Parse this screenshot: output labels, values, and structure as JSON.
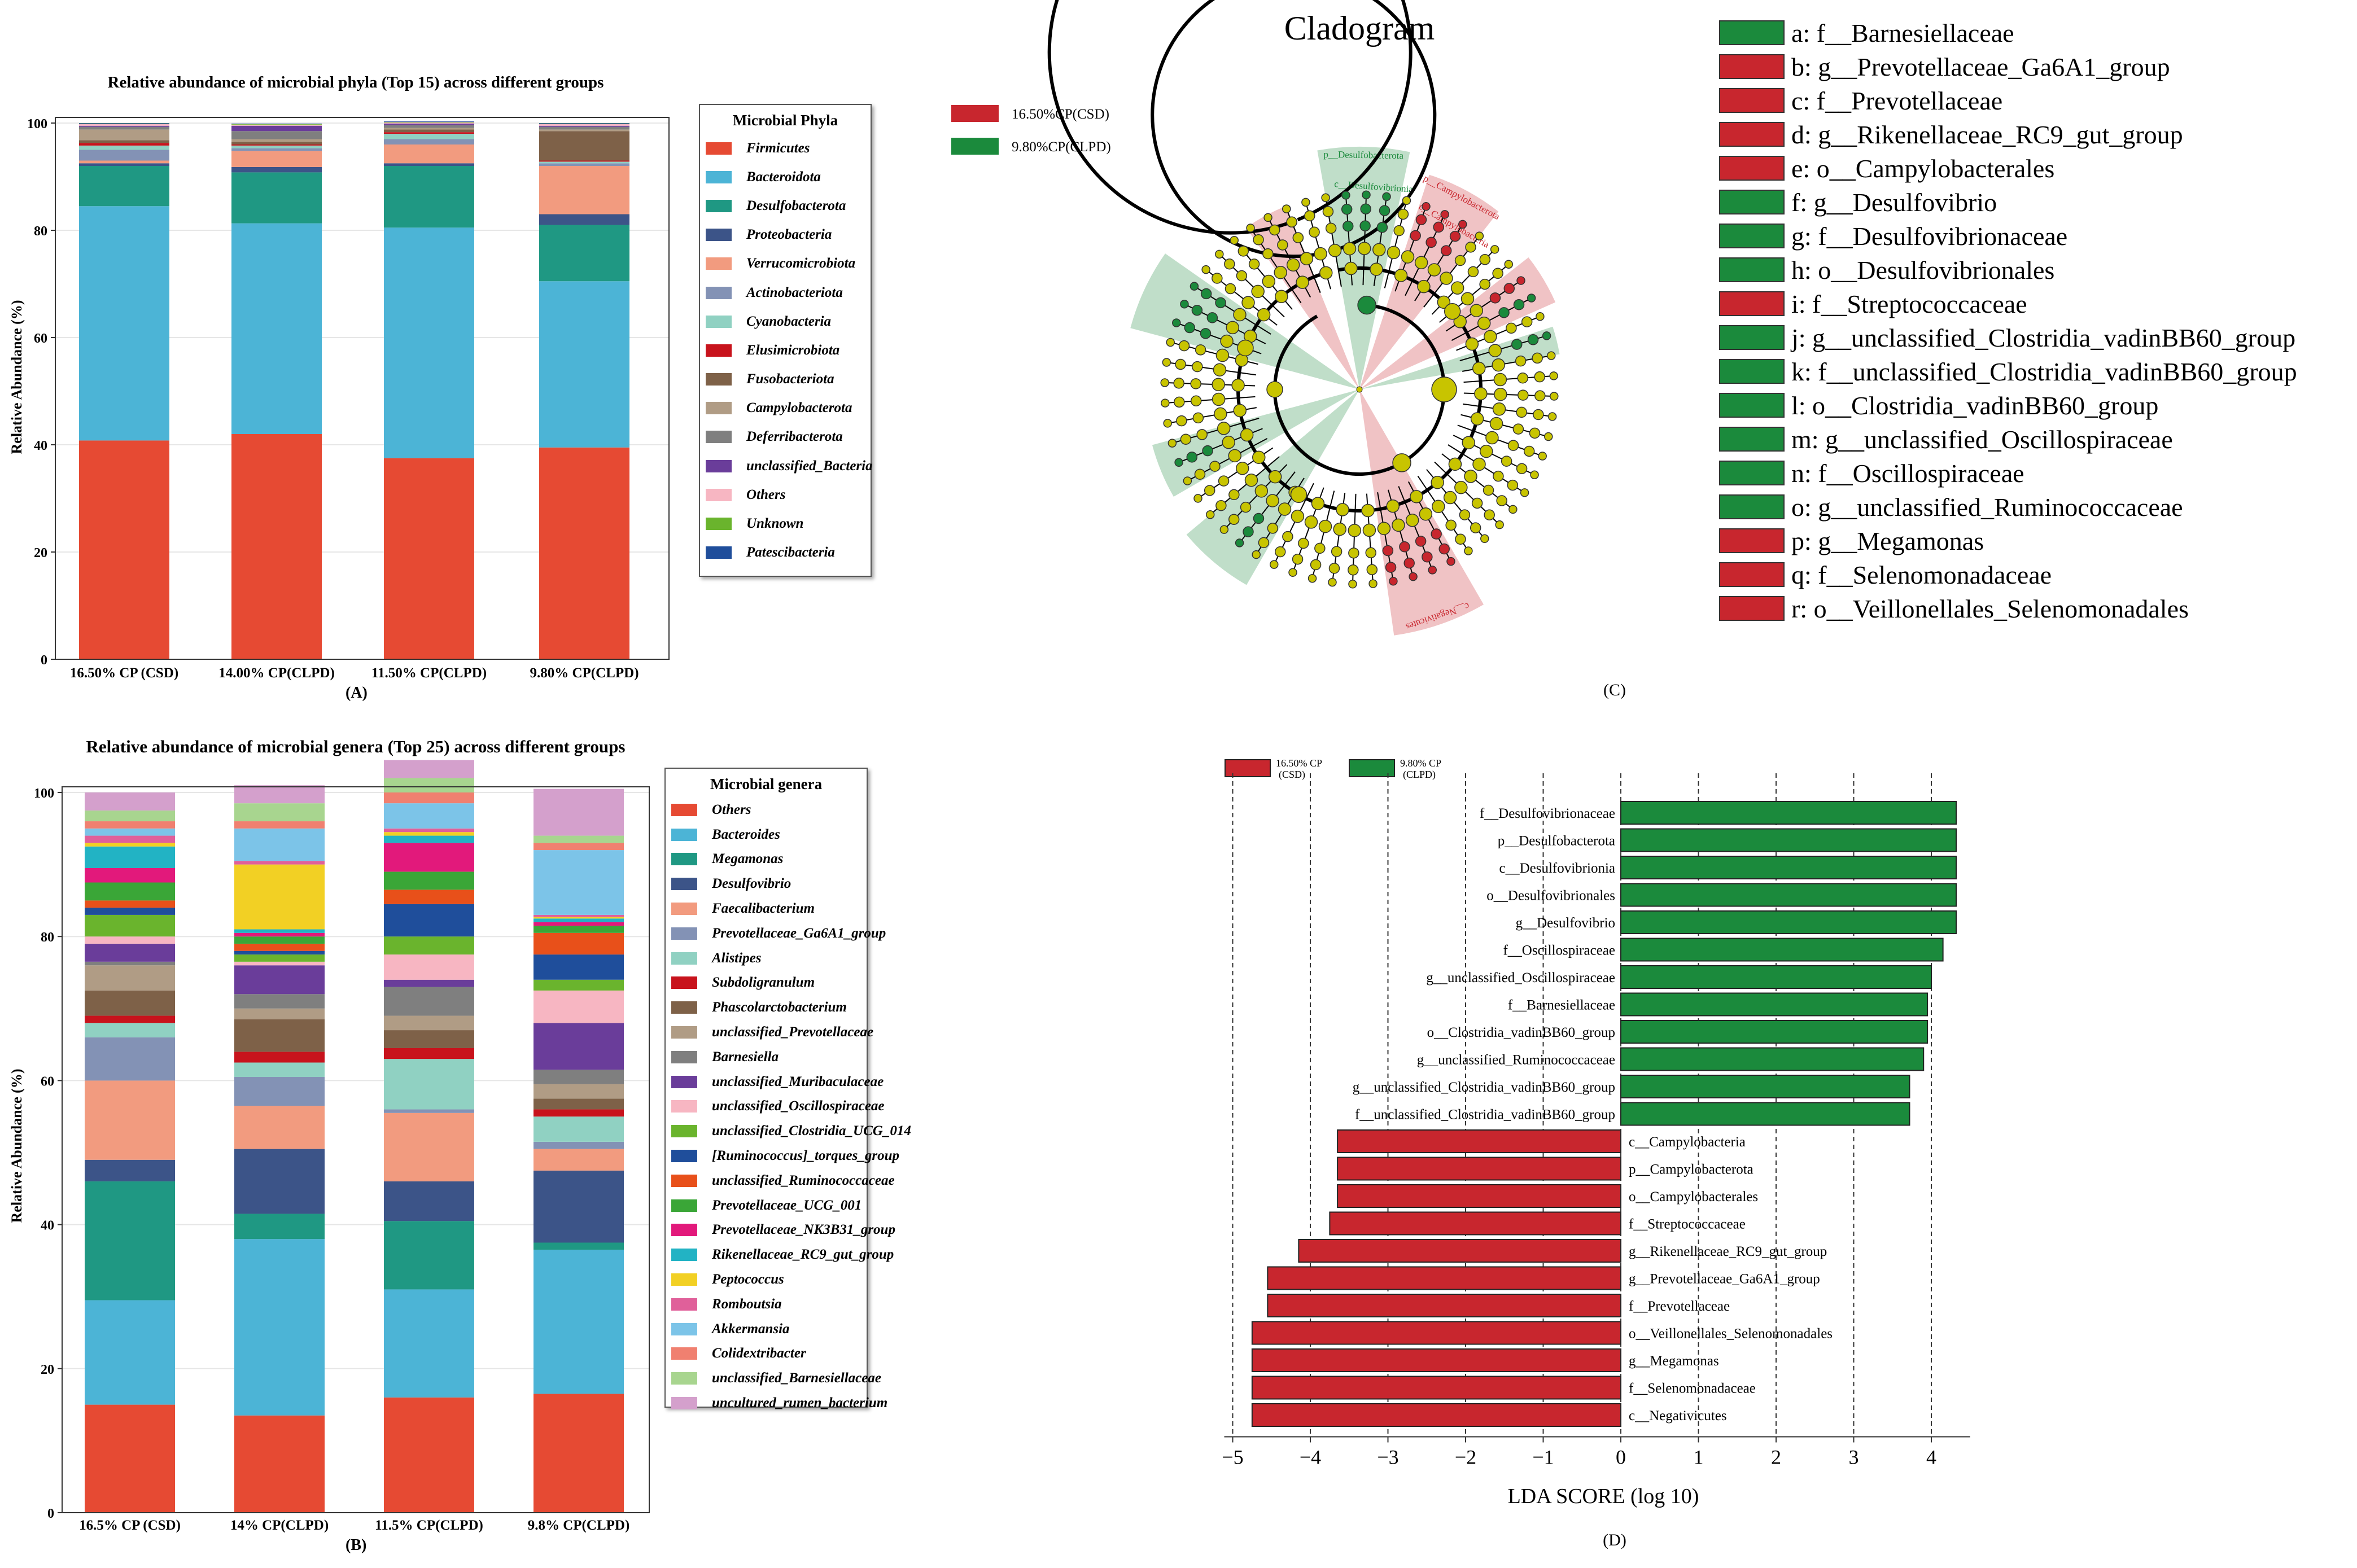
{
  "colors": {
    "phyla": [
      "#e64a33",
      "#4cb4d6",
      "#1f9883",
      "#3c5488",
      "#f29b7f",
      "#8392b5",
      "#90d1c2",
      "#c8131c",
      "#7e6148",
      "#b09c85",
      "#7f7f7f",
      "#6a3d9a",
      "#f7b6c2",
      "#6ab42d",
      "#1f4e9b"
    ],
    "genera": [
      "#e64a33",
      "#4cb4d6",
      "#1f9883",
      "#3c5488",
      "#f29b7f",
      "#8392b5",
      "#90d1c2",
      "#c8131c",
      "#7e6148",
      "#b09c85",
      "#7f7f7f",
      "#6a3d9a",
      "#f7b6c2",
      "#6ab42d",
      "#1f4e9b",
      "#e8501a",
      "#3aa637",
      "#e2197b",
      "#22b3c4",
      "#f2d024",
      "#e0609a",
      "#7cc4e8",
      "#f08070",
      "#a8d58f",
      "#d4a0cc"
    ],
    "csd": "#c8262e",
    "clpd": "#1b8a3c",
    "node": "#c8c400"
  },
  "panelA": {
    "label": "(A)",
    "chart_data": {
      "type": "bar",
      "stacked": true,
      "title": "Relative abundance of microbial phyla (Top 15) across different groups",
      "xlabel": "",
      "ylabel": "Relative Abundance (%)",
      "ylim": [
        0,
        100
      ],
      "yticks": [
        "0",
        "20",
        "40",
        "60",
        "80",
        "100"
      ],
      "categories": [
        "16.50% CP (CSD)",
        "14.00% CP(CLPD)",
        "11.50% CP(CLPD)",
        "9.80% CP(CLPD)"
      ],
      "legend_title": "Microbial Phyla",
      "series": [
        {
          "name": "Firmicutes",
          "values": [
            40.8,
            42.0,
            37.5,
            39.5
          ]
        },
        {
          "name": "Bacteroidota",
          "values": [
            43.7,
            39.3,
            43.0,
            31.0
          ]
        },
        {
          "name": "Desulfobacterota",
          "values": [
            7.5,
            9.5,
            11.5,
            10.5
          ]
        },
        {
          "name": "Proteobacteria",
          "values": [
            0.5,
            1.0,
            0.5,
            2.0
          ]
        },
        {
          "name": "Verrucomicrobiota",
          "values": [
            0.5,
            3.0,
            3.5,
            9.0
          ]
        },
        {
          "name": "Actinobacteriota",
          "values": [
            2.0,
            0.5,
            1.0,
            0.5
          ]
        },
        {
          "name": "Cyanobacteria",
          "values": [
            0.8,
            0.5,
            1.0,
            0.3
          ]
        },
        {
          "name": "Elusimicrobiota",
          "values": [
            0.5,
            0.2,
            0.3,
            0.2
          ]
        },
        {
          "name": "Fusobacteriota",
          "values": [
            0.5,
            0.5,
            0.5,
            5.5
          ]
        },
        {
          "name": "Campylobacterota",
          "values": [
            2.0,
            0.5,
            0.3,
            0.3
          ]
        },
        {
          "name": "Deferribacterota",
          "values": [
            0.5,
            1.5,
            0.5,
            0.5
          ]
        },
        {
          "name": "unclassified_Bacteria",
          "values": [
            0.2,
            1.0,
            0.3,
            0.2
          ]
        },
        {
          "name": "Others",
          "values": [
            0.3,
            0.2,
            0.2,
            0.3
          ]
        },
        {
          "name": "Unknown",
          "values": [
            0.1,
            0.1,
            0.1,
            0.1
          ]
        },
        {
          "name": "Patescibacteria",
          "values": [
            0.1,
            0.1,
            0.1,
            0.1
          ]
        }
      ]
    }
  },
  "panelB": {
    "label": "(B)",
    "chart_data": {
      "type": "bar",
      "stacked": true,
      "title": "Relative abundance of microbial genera (Top 25) across different groups",
      "xlabel": "",
      "ylabel": "Relative Abundance (%)",
      "ylim": [
        0,
        100
      ],
      "yticks": [
        "0",
        "20",
        "40",
        "60",
        "80",
        "100"
      ],
      "categories": [
        "16.5% CP (CSD)",
        "14% CP(CLPD)",
        "11.5% CP(CLPD)",
        "9.8% CP(CLPD)"
      ],
      "legend_title": "Microbial genera",
      "series": [
        {
          "name": "Others",
          "values": [
            15.0,
            13.5,
            16.0,
            16.5
          ]
        },
        {
          "name": "Bacteroides",
          "values": [
            14.5,
            24.5,
            15.0,
            20.0
          ]
        },
        {
          "name": "Megamonas",
          "values": [
            16.5,
            3.5,
            9.5,
            1.0
          ]
        },
        {
          "name": "Desulfovibrio",
          "values": [
            3.0,
            9.0,
            5.5,
            10.0
          ]
        },
        {
          "name": "Faecalibacterium",
          "values": [
            11.0,
            6.0,
            9.5,
            3.0
          ]
        },
        {
          "name": "Prevotellaceae_Ga6A1_group",
          "values": [
            6.0,
            4.0,
            0.5,
            1.0
          ]
        },
        {
          "name": "Alistipes",
          "values": [
            2.0,
            2.0,
            7.0,
            3.5
          ]
        },
        {
          "name": "Subdoligranulum",
          "values": [
            1.0,
            1.5,
            1.5,
            1.0
          ]
        },
        {
          "name": "Phascolarctobacterium",
          "values": [
            3.5,
            4.5,
            2.5,
            1.5
          ]
        },
        {
          "name": "unclassified_Prevotellaceae",
          "values": [
            3.5,
            1.5,
            2.0,
            2.0
          ]
        },
        {
          "name": "Barnesiella",
          "values": [
            0.5,
            2.0,
            4.0,
            2.0
          ]
        },
        {
          "name": "unclassified_Muribaculaceae",
          "values": [
            2.5,
            4.0,
            1.0,
            6.5
          ]
        },
        {
          "name": "unclassified_Oscillospiraceae",
          "values": [
            1.0,
            0.5,
            3.5,
            4.5
          ]
        },
        {
          "name": "unclassified_Clostridia_UCG_014",
          "values": [
            3.0,
            1.0,
            2.5,
            1.5
          ]
        },
        {
          "name": "[Ruminococcus]_torques_group",
          "values": [
            1.0,
            0.5,
            4.5,
            3.5
          ]
        },
        {
          "name": "unclassified_Ruminococcaceae",
          "values": [
            1.0,
            1.0,
            2.0,
            3.0
          ]
        },
        {
          "name": "Prevotellaceae_UCG_001",
          "values": [
            2.5,
            1.0,
            2.5,
            1.0
          ]
        },
        {
          "name": "Prevotellaceae_NK3B31_group",
          "values": [
            2.0,
            0.5,
            4.0,
            0.5
          ]
        },
        {
          "name": "Rikenellaceae_RC9_gut_group",
          "values": [
            3.0,
            0.5,
            1.0,
            0.5
          ]
        },
        {
          "name": "Peptococcus",
          "values": [
            0.5,
            9.0,
            0.5,
            0.2
          ]
        },
        {
          "name": "Romboutsia",
          "values": [
            1.0,
            0.5,
            0.5,
            0.3
          ]
        },
        {
          "name": "Akkermansia",
          "values": [
            1.0,
            4.5,
            3.5,
            9.0
          ]
        },
        {
          "name": "Colidextribacter",
          "values": [
            1.0,
            1.0,
            1.5,
            1.0
          ]
        },
        {
          "name": "unclassified_Barnesiellaceae",
          "values": [
            1.5,
            2.5,
            2.0,
            1.0
          ]
        },
        {
          "name": "uncultured_rumen_bacterium",
          "values": [
            2.5,
            2.5,
            2.5,
            6.5
          ]
        }
      ]
    }
  },
  "panelC": {
    "label": "(C)",
    "title": "Cladogram",
    "legend_groups": [
      {
        "name": "16.50%CP(CSD)",
        "group": "csd"
      },
      {
        "name": "9.80%CP(CLPD)",
        "group": "clpd"
      }
    ],
    "taxa": [
      {
        "text": "a: f__Barnesiellaceae",
        "group": "clpd"
      },
      {
        "text": "b: g__Prevotellaceae_Ga6A1_group",
        "group": "csd"
      },
      {
        "text": "c: f__Prevotellaceae",
        "group": "csd"
      },
      {
        "text": "d: g__Rikenellaceae_RC9_gut_group",
        "group": "csd"
      },
      {
        "text": "e: o__Campylobacterales",
        "group": "csd"
      },
      {
        "text": "f: g__Desulfovibrio",
        "group": "clpd"
      },
      {
        "text": "g: f__Desulfovibrionaceae",
        "group": "clpd"
      },
      {
        "text": "h: o__Desulfovibrionales",
        "group": "clpd"
      },
      {
        "text": "i: f__Streptococcaceae",
        "group": "csd"
      },
      {
        "text": "j: g__unclassified_Clostridia_vadinBB60_group",
        "group": "clpd"
      },
      {
        "text": "k: f__unclassified_Clostridia_vadinBB60_group",
        "group": "clpd"
      },
      {
        "text": "l: o__Clostridia_vadinBB60_group",
        "group": "clpd"
      },
      {
        "text": "m: g__unclassified_Oscillospiraceae",
        "group": "clpd"
      },
      {
        "text": "n: f__Oscillospiraceae",
        "group": "clpd"
      },
      {
        "text": "o: g__unclassified_Ruminococcaceae",
        "group": "clpd"
      },
      {
        "text": "p: g__Megamonas",
        "group": "csd"
      },
      {
        "text": "q: f__Selenomonadaceae",
        "group": "csd"
      },
      {
        "text": "r: o__Veillonellales_Selenomonadales",
        "group": "csd"
      }
    ],
    "sector_labels": [
      "p__Desulfobacterota",
      "c__Desulfovibrionia",
      "p__Campylobacterota",
      "c__Campylobacteria",
      "c__Negativicutes"
    ]
  },
  "panelD": {
    "label": "(D)",
    "chart_data": {
      "type": "bar",
      "orientation": "horizontal",
      "title": "",
      "xlabel": "LDA SCORE (log 10)",
      "ylabel": "",
      "xlim": [
        -5,
        4.5
      ],
      "xticks": [
        "−5",
        "−4",
        "−3",
        "−2",
        "−1",
        "0",
        "1",
        "2",
        "3",
        "4"
      ],
      "legend": [
        {
          "line1": "16.50% CP",
          "line2": "(CSD)",
          "group": "csd"
        },
        {
          "line1": "9.80% CP",
          "line2": "(CLPD)",
          "group": "clpd"
        }
      ],
      "bars": [
        {
          "name": "f__Desulfovibrionaceae",
          "value": 4.32,
          "group": "clpd"
        },
        {
          "name": "p__Desulfobacterota",
          "value": 4.32,
          "group": "clpd"
        },
        {
          "name": "c__Desulfovibrionia",
          "value": 4.32,
          "group": "clpd"
        },
        {
          "name": "o__Desulfovibrionales",
          "value": 4.32,
          "group": "clpd"
        },
        {
          "name": "g__Desulfovibrio",
          "value": 4.32,
          "group": "clpd"
        },
        {
          "name": "f__Oscillospiraceae",
          "value": 4.15,
          "group": "clpd"
        },
        {
          "name": "g__unclassified_Oscillospiraceae",
          "value": 4.0,
          "group": "clpd"
        },
        {
          "name": "f__Barnesiellaceae",
          "value": 3.95,
          "group": "clpd"
        },
        {
          "name": "o__Clostridia_vadinBB60_group",
          "value": 3.95,
          "group": "clpd"
        },
        {
          "name": "g__unclassified_Ruminococcaceae",
          "value": 3.9,
          "group": "clpd"
        },
        {
          "name": "g__unclassified_Clostridia_vadinBB60_group",
          "value": 3.72,
          "group": "clpd"
        },
        {
          "name": "f__unclassified_Clostridia_vadinBB60_group",
          "value": 3.72,
          "group": "clpd"
        },
        {
          "name": "c__Campylobacteria",
          "value": -3.65,
          "group": "csd"
        },
        {
          "name": "p__Campylobacterota",
          "value": -3.65,
          "group": "csd"
        },
        {
          "name": "o__Campylobacterales",
          "value": -3.65,
          "group": "csd"
        },
        {
          "name": "f__Streptococcaceae",
          "value": -3.75,
          "group": "csd"
        },
        {
          "name": "g__Rikenellaceae_RC9_gut_group",
          "value": -4.15,
          "group": "csd"
        },
        {
          "name": "g__Prevotellaceae_Ga6A1_group",
          "value": -4.55,
          "group": "csd"
        },
        {
          "name": "f__Prevotellaceae",
          "value": -4.55,
          "group": "csd"
        },
        {
          "name": "o__Veillonellales_Selenomonadales",
          "value": -4.75,
          "group": "csd"
        },
        {
          "name": "g__Megamonas",
          "value": -4.75,
          "group": "csd"
        },
        {
          "name": "f__Selenomonadaceae",
          "value": -4.75,
          "group": "csd"
        },
        {
          "name": "c__Negativicutes",
          "value": -4.75,
          "group": "csd"
        }
      ]
    }
  }
}
